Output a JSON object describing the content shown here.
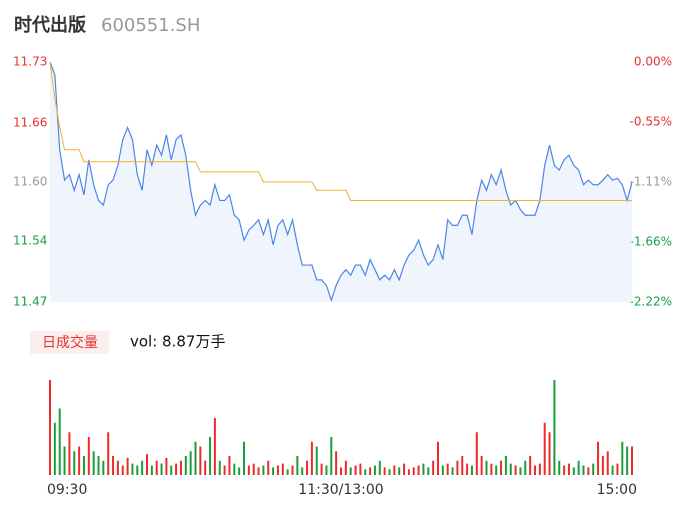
{
  "header": {
    "title": "时代出版",
    "code": "600551.SH"
  },
  "chart_data": [
    {
      "type": "line",
      "x": [
        0,
        2,
        4,
        6,
        8,
        10,
        12,
        14,
        16,
        18,
        20,
        22,
        24,
        26,
        28,
        30,
        32,
        34,
        36,
        38,
        40,
        42,
        44,
        46,
        48,
        50,
        52,
        54,
        56,
        58,
        60,
        62,
        64,
        66,
        68,
        70,
        72,
        74,
        76,
        78,
        80,
        82,
        84,
        86,
        88,
        90,
        92,
        94,
        96,
        98,
        100,
        102,
        104,
        106,
        108,
        110,
        112,
        114,
        116,
        118,
        120,
        122,
        124,
        126,
        128,
        130,
        132,
        134,
        136,
        138,
        140,
        142,
        144,
        146,
        148,
        150,
        152,
        154,
        156,
        158,
        160,
        162,
        164,
        166,
        168,
        170,
        172,
        174,
        176,
        178,
        180,
        182,
        184,
        186,
        188,
        190,
        192,
        194,
        196,
        198,
        200,
        202,
        204,
        206,
        208,
        210,
        212,
        214,
        216,
        218,
        220,
        222,
        224,
        226,
        228,
        230,
        232,
        234,
        236,
        238,
        240
      ],
      "xlim": [
        0,
        240
      ],
      "xticks": [
        {
          "value": 0,
          "label": "09:30"
        },
        {
          "value": 120,
          "label": "11:30/13:00"
        },
        {
          "value": 240,
          "label": "15:00"
        }
      ],
      "ylim": [
        11.47,
        11.73
      ],
      "yticks": [
        11.73,
        {
          "value": 11.664,
          "label": "11.66"
        },
        {
          "value": 11.6,
          "label": "11.60"
        },
        {
          "value": 11.536,
          "label": "11.54"
        },
        11.47
      ],
      "y2lim": [
        -2.22,
        0
      ],
      "y2ticks": [
        {
          "value": 0,
          "label": "0.00%"
        },
        {
          "value": -0.554,
          "label": "-0.55%"
        },
        {
          "value": -1.11,
          "label": "-1.11%"
        },
        {
          "value": -1.664,
          "label": "-1.66%"
        },
        {
          "value": -2.22,
          "label": "-2.22%"
        }
      ],
      "tick_colors": [
        "#e83030",
        "#999999",
        "#1a9e4a"
      ],
      "area_color": "#e8f0fc",
      "series": [
        {
          "color": "#4a86e8",
          "values": [
            11.73,
            11.716,
            11.635,
            11.602,
            11.608,
            11.591,
            11.608,
            11.586,
            11.624,
            11.597,
            11.58,
            11.575,
            11.597,
            11.602,
            11.618,
            11.646,
            11.659,
            11.646,
            11.608,
            11.591,
            11.635,
            11.618,
            11.64,
            11.629,
            11.651,
            11.624,
            11.646,
            11.651,
            11.629,
            11.591,
            11.564,
            11.575,
            11.58,
            11.575,
            11.597,
            11.58,
            11.58,
            11.586,
            11.564,
            11.559,
            11.537,
            11.548,
            11.553,
            11.559,
            11.543,
            11.559,
            11.532,
            11.553,
            11.559,
            11.543,
            11.559,
            11.532,
            11.51,
            11.51,
            11.51,
            11.494,
            11.494,
            11.488,
            11.472,
            11.488,
            11.499,
            11.505,
            11.499,
            11.51,
            11.51,
            11.499,
            11.516,
            11.505,
            11.494,
            11.499,
            11.494,
            11.505,
            11.494,
            11.51,
            11.521,
            11.526,
            11.537,
            11.521,
            11.51,
            11.516,
            11.532,
            11.516,
            11.559,
            11.553,
            11.553,
            11.564,
            11.564,
            11.543,
            11.58,
            11.602,
            11.591,
            11.608,
            11.597,
            11.613,
            11.591,
            11.575,
            11.58,
            11.57,
            11.564,
            11.564,
            11.564,
            11.58,
            11.618,
            11.64,
            11.618,
            11.613,
            11.624,
            11.629,
            11.618,
            11.613,
            11.597,
            11.602,
            11.597,
            11.597,
            11.602,
            11.608,
            11.602,
            11.604,
            11.597,
            11.58,
            11.6
          ]
        },
        {
          "color": "#f0b030",
          "values": [
            11.73,
            11.69,
            11.66,
            11.635,
            11.635,
            11.635,
            11.635,
            11.622,
            11.622,
            11.622,
            11.622,
            11.622,
            11.622,
            11.622,
            11.622,
            11.622,
            11.622,
            11.622,
            11.622,
            11.622,
            11.622,
            11.622,
            11.622,
            11.622,
            11.622,
            11.622,
            11.622,
            11.622,
            11.622,
            11.622,
            11.622,
            11.611,
            11.611,
            11.611,
            11.611,
            11.611,
            11.611,
            11.611,
            11.611,
            11.611,
            11.611,
            11.611,
            11.611,
            11.611,
            11.6,
            11.6,
            11.6,
            11.6,
            11.6,
            11.6,
            11.6,
            11.6,
            11.6,
            11.6,
            11.6,
            11.591,
            11.591,
            11.591,
            11.591,
            11.591,
            11.591,
            11.591,
            11.58,
            11.58,
            11.58,
            11.58,
            11.58,
            11.58,
            11.58,
            11.58,
            11.58,
            11.58,
            11.58,
            11.58,
            11.58,
            11.58,
            11.58,
            11.58,
            11.58,
            11.58,
            11.58,
            11.58,
            11.58,
            11.58,
            11.58,
            11.58,
            11.58,
            11.58,
            11.58,
            11.58,
            11.58,
            11.58,
            11.58,
            11.58,
            11.58,
            11.58,
            11.58,
            11.58,
            11.58,
            11.58,
            11.58,
            11.58,
            11.58,
            11.58,
            11.58,
            11.58,
            11.58,
            11.58,
            11.58,
            11.58,
            11.58,
            11.58,
            11.58,
            11.58,
            11.58,
            11.58,
            11.58,
            11.58,
            11.58,
            11.58,
            11.58
          ]
        }
      ]
    },
    {
      "type": "bar",
      "button": "日成交量",
      "label": "vol: 8.87万手",
      "ylim": [
        0,
        100
      ],
      "colors": {
        "up": "#ee2b2b",
        "down": "#1a9e3a"
      },
      "values": [
        100,
        55,
        70,
        30,
        45,
        25,
        30,
        20,
        40,
        25,
        20,
        15,
        45,
        20,
        15,
        10,
        18,
        12,
        10,
        15,
        22,
        10,
        15,
        12,
        18,
        10,
        12,
        15,
        20,
        25,
        35,
        30,
        15,
        40,
        60,
        15,
        10,
        20,
        12,
        8,
        35,
        10,
        12,
        8,
        10,
        15,
        8,
        10,
        12,
        6,
        10,
        20,
        8,
        15,
        35,
        30,
        12,
        10,
        40,
        25,
        8,
        15,
        8,
        10,
        12,
        6,
        8,
        10,
        15,
        8,
        6,
        10,
        8,
        12,
        6,
        8,
        10,
        12,
        8,
        15,
        35,
        10,
        12,
        8,
        15,
        20,
        12,
        10,
        45,
        20,
        15,
        12,
        10,
        15,
        20,
        12,
        10,
        8,
        15,
        20,
        10,
        12,
        55,
        45,
        100,
        15,
        10,
        12,
        8,
        15,
        10,
        8,
        12,
        35,
        20,
        25,
        10,
        12,
        35,
        30,
        30
      ]
    }
  ]
}
